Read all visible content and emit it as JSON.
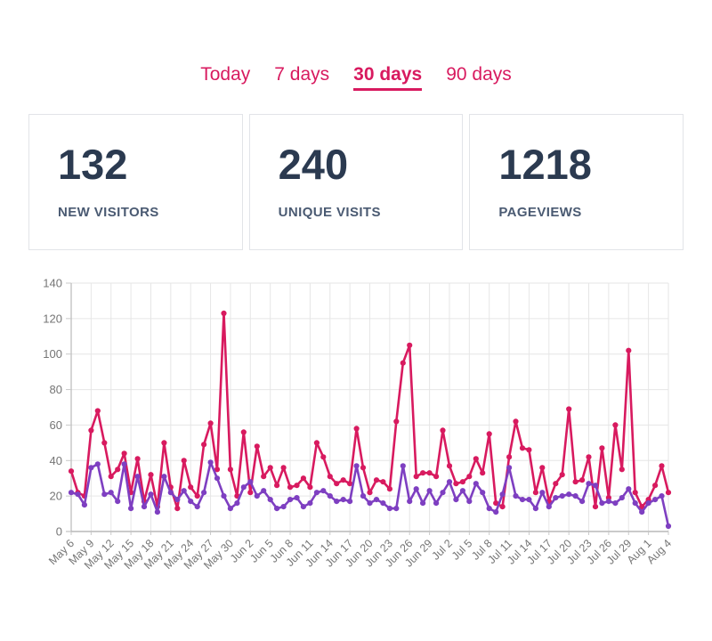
{
  "tabs": {
    "items": [
      {
        "label": "Today",
        "active": false
      },
      {
        "label": "7 days",
        "active": false
      },
      {
        "label": "30 days",
        "active": true
      },
      {
        "label": "90 days",
        "active": false
      }
    ],
    "accent_color": "#d81a5f"
  },
  "stats": {
    "cards": [
      {
        "value": "132",
        "label": "NEW VISITORS"
      },
      {
        "value": "240",
        "label": "UNIQUE VISITS"
      },
      {
        "value": "1218",
        "label": "PAGEVIEWS"
      }
    ],
    "value_color": "#2b3a50",
    "label_color": "#4a5a72"
  },
  "chart_data": {
    "type": "line",
    "title": "",
    "xlabel": "",
    "ylabel": "",
    "ylim": [
      0,
      140
    ],
    "ytick_step": 20,
    "ytick_labels": [
      "0",
      "20",
      "40",
      "60",
      "80",
      "100",
      "120",
      "140"
    ],
    "days_per_tick": 3,
    "x_tick_labels": [
      "May 6",
      "May 9",
      "May 12",
      "May 15",
      "May 18",
      "May 21",
      "May 24",
      "May 27",
      "May 30",
      "Jun 2",
      "Jun 5",
      "Jun 8",
      "Jun 11",
      "Jun 14",
      "Jun 17",
      "Jun 20",
      "Jun 23",
      "Jun 26",
      "Jun 29",
      "Jul 2",
      "Jul 5",
      "Jul 8",
      "Jul 11",
      "Jul 14",
      "Jul 17",
      "Jul 20",
      "Jul 23",
      "Jul 26",
      "Jul 29",
      "Aug 1",
      "Aug 4"
    ],
    "grid": true,
    "legend": "none",
    "grid_color": "#e6e6e6",
    "axis_color": "#ababab",
    "tick_text_color": "#757575",
    "series": [
      {
        "name": "red",
        "color": "#d81a5f",
        "values": [
          34,
          22,
          20,
          57,
          68,
          50,
          31,
          35,
          44,
          22,
          41,
          17,
          32,
          14,
          50,
          25,
          13,
          40,
          25,
          20,
          49,
          61,
          35,
          123,
          35,
          20,
          56,
          22,
          48,
          31,
          36,
          26,
          36,
          25,
          26,
          30,
          25,
          50,
          42,
          31,
          27,
          29,
          27,
          58,
          36,
          22,
          29,
          28,
          24,
          62,
          95,
          105,
          31,
          33,
          33,
          31,
          57,
          37,
          27,
          28,
          31,
          41,
          33,
          55,
          16,
          14,
          42,
          62,
          47,
          46,
          22,
          36,
          17,
          27,
          32,
          69,
          28,
          29,
          42,
          14,
          47,
          19,
          60,
          35,
          102,
          22,
          14,
          18,
          26,
          37,
          22
        ]
      },
      {
        "name": "purple",
        "color": "#7e3fc1",
        "values": [
          22,
          21,
          15,
          36,
          38,
          21,
          22,
          17,
          38,
          13,
          31,
          14,
          21,
          11,
          31,
          22,
          18,
          23,
          17,
          14,
          22,
          39,
          30,
          20,
          13,
          16,
          25,
          28,
          20,
          23,
          18,
          13,
          14,
          18,
          19,
          14,
          16,
          22,
          23,
          20,
          17,
          18,
          17,
          37,
          20,
          16,
          18,
          16,
          13,
          13,
          37,
          17,
          24,
          16,
          23,
          16,
          22,
          28,
          18,
          23,
          17,
          27,
          22,
          13,
          11,
          21,
          36,
          20,
          18,
          18,
          13,
          22,
          14,
          19,
          20,
          21,
          20,
          17,
          27,
          26,
          16,
          17,
          16,
          19,
          24,
          16,
          11,
          16,
          18,
          20,
          3
        ]
      }
    ]
  }
}
